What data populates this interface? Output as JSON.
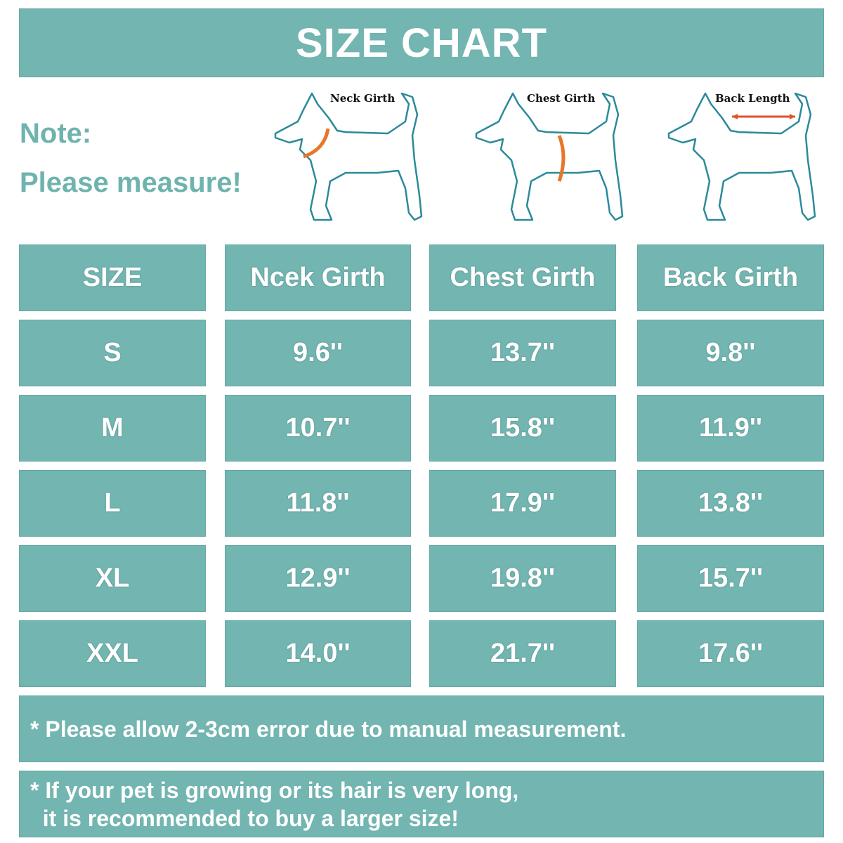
{
  "title": "SIZE CHART",
  "note": {
    "line1": "Note:",
    "line2": "Please measure!"
  },
  "diagrams": [
    {
      "label": "Neck Girth",
      "icon": "dog-neck-girth-icon"
    },
    {
      "label": "Chest Girth",
      "icon": "dog-chest-girth-icon"
    },
    {
      "label": "Back Length",
      "icon": "dog-back-length-icon"
    }
  ],
  "colors": {
    "teal": "#72b5b1",
    "outline": "#2b8a9a",
    "arrow": "#e8762a"
  },
  "table": {
    "headers": [
      "SIZE",
      "Ncek Girth",
      "Chest Girth",
      "Back Girth"
    ],
    "rows": [
      [
        "S",
        "9.6''",
        "13.7''",
        "9.8''"
      ],
      [
        "M",
        "10.7''",
        "15.8''",
        "11.9''"
      ],
      [
        "L",
        "11.8''",
        "17.9''",
        "13.8''"
      ],
      [
        "XL",
        "12.9''",
        "19.8''",
        "15.7''"
      ],
      [
        "XXL",
        "14.0''",
        "21.7''",
        "17.6''"
      ]
    ]
  },
  "footnotes": {
    "error": "* Please allow 2-3cm error due to manual measurement.",
    "growing_line1": "* If your pet is growing or its hair is very long,",
    "growing_line2": "  it is recommended to buy a larger size!"
  }
}
